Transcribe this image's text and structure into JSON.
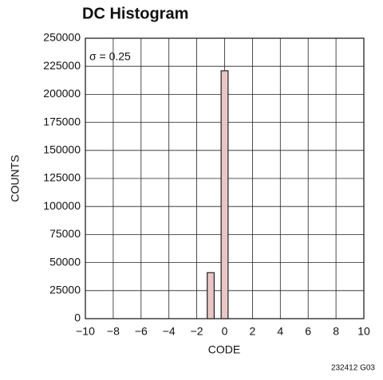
{
  "chart_data": {
    "type": "bar",
    "title": "DC Histogram",
    "x_label": "CODE",
    "y_label": "COUNTS",
    "annotation": "σ = 0.25",
    "footnote": "232412 G03",
    "x": [
      -1,
      0
    ],
    "values": [
      41000,
      221000
    ],
    "color": "#e8c6c6",
    "xlim": [
      -10,
      10
    ],
    "xticks": [
      {
        "value": -10,
        "label": "−10"
      },
      {
        "value": -8,
        "label": "−8"
      },
      {
        "value": -6,
        "label": "−6"
      },
      {
        "value": -4,
        "label": "−4"
      },
      {
        "value": -2,
        "label": "−2"
      },
      0,
      2,
      4,
      6,
      8,
      10
    ],
    "ylim": [
      0,
      250000
    ],
    "yticks": [
      0,
      25000,
      50000,
      75000,
      100000,
      125000,
      150000,
      175000,
      200000,
      225000,
      250000
    ],
    "grid": true
  }
}
